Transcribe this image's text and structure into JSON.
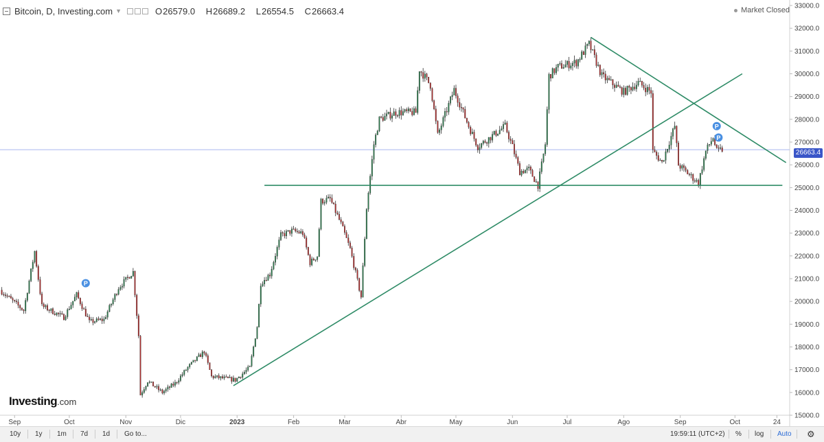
{
  "header": {
    "symbol": "Bitcoin, D, Investing.com",
    "open_label": "O",
    "open": "26579.0",
    "high_label": "H",
    "high": "26689.2",
    "low_label": "L",
    "low": "26554.5",
    "close_label": "C",
    "close": "26663.4"
  },
  "status": "Market Closed",
  "logo": {
    "main": "Investing",
    "suffix": ".com"
  },
  "toolbar": {
    "periods": [
      "10y",
      "1y",
      "1m",
      "7d",
      "1d"
    ],
    "goto": "Go to...",
    "clock": "19:59:11 (UTC+2)",
    "percent": "%",
    "log": "log",
    "auto": "Auto",
    "settings_icon": "gear-icon"
  },
  "colors": {
    "up": "#2e7d4f",
    "down": "#b03030",
    "line": "#2e8b66",
    "last_price": "#3a56c8",
    "marker": "#4a90e2"
  },
  "chart_data": {
    "type": "candlestick",
    "title": "Bitcoin, D, Investing.com",
    "ylim": [
      15000,
      33000
    ],
    "y_ticks": [
      15000,
      16000,
      17000,
      18000,
      19000,
      20000,
      21000,
      22000,
      23000,
      24000,
      25000,
      26000,
      27000,
      28000,
      29000,
      30000,
      31000,
      32000,
      33000
    ],
    "x_ticks": [
      "Sep",
      "Oct",
      "Nov",
      "Dic",
      "2023",
      "Feb",
      "Mar",
      "Abr",
      "May",
      "Jun",
      "Jul",
      "Ago",
      "Sep",
      "Oct",
      "24"
    ],
    "x_tick_dates": [
      "2022-09-01",
      "2022-10-01",
      "2022-11-01",
      "2022-12-01",
      "2023-01-01",
      "2023-02-01",
      "2023-03-01",
      "2023-04-01",
      "2023-05-01",
      "2023-06-01",
      "2023-07-01",
      "2023-08-01",
      "2023-09-01",
      "2023-10-01",
      "2023-10-24"
    ],
    "last_price": 26663.4,
    "date_range": [
      "2022-08-24",
      "2023-10-31"
    ],
    "anchors": [
      [
        "2022-08-24",
        20500
      ],
      [
        "2022-09-06",
        19600
      ],
      [
        "2022-09-12",
        22200
      ],
      [
        "2022-09-16",
        19800
      ],
      [
        "2022-09-28",
        19300
      ],
      [
        "2022-10-05",
        20300
      ],
      [
        "2022-10-12",
        19100
      ],
      [
        "2022-10-20",
        19200
      ],
      [
        "2022-10-28",
        20600
      ],
      [
        "2022-11-05",
        21300
      ],
      [
        "2022-11-08",
        18500
      ],
      [
        "2022-11-09",
        15900
      ],
      [
        "2022-11-13",
        16500
      ],
      [
        "2022-11-21",
        16000
      ],
      [
        "2022-11-28",
        16400
      ],
      [
        "2022-12-05",
        17100
      ],
      [
        "2022-12-14",
        17800
      ],
      [
        "2022-12-18",
        16700
      ],
      [
        "2022-12-31",
        16550
      ],
      [
        "2023-01-08",
        17100
      ],
      [
        "2023-01-12",
        18900
      ],
      [
        "2023-01-14",
        20800
      ],
      [
        "2023-01-19",
        21200
      ],
      [
        "2023-01-25",
        22900
      ],
      [
        "2023-01-31",
        23100
      ],
      [
        "2023-02-06",
        23000
      ],
      [
        "2023-02-10",
        21700
      ],
      [
        "2023-02-14",
        22000
      ],
      [
        "2023-02-16",
        24400
      ],
      [
        "2023-02-21",
        24500
      ],
      [
        "2023-02-27",
        23400
      ],
      [
        "2023-03-04",
        22300
      ],
      [
        "2023-03-10",
        20200
      ],
      [
        "2023-03-13",
        24100
      ],
      [
        "2023-03-17",
        26900
      ],
      [
        "2023-03-20",
        28000
      ],
      [
        "2023-03-29",
        28300
      ],
      [
        "2023-04-09",
        28300
      ],
      [
        "2023-04-11",
        30200
      ],
      [
        "2023-04-17",
        29500
      ],
      [
        "2023-04-21",
        27300
      ],
      [
        "2023-04-30",
        29300
      ],
      [
        "2023-05-08",
        27700
      ],
      [
        "2023-05-13",
        26800
      ],
      [
        "2023-05-28",
        27700
      ],
      [
        "2023-06-01",
        26800
      ],
      [
        "2023-06-05",
        25700
      ],
      [
        "2023-06-10",
        25800
      ],
      [
        "2023-06-15",
        25100
      ],
      [
        "2023-06-19",
        26900
      ],
      [
        "2023-06-21",
        29900
      ],
      [
        "2023-06-26",
        30300
      ],
      [
        "2023-07-06",
        30500
      ],
      [
        "2023-07-13",
        31300
      ],
      [
        "2023-07-20",
        29900
      ],
      [
        "2023-08-01",
        29200
      ],
      [
        "2023-08-09",
        29600
      ],
      [
        "2023-08-16",
        29200
      ],
      [
        "2023-08-17",
        26600
      ],
      [
        "2023-08-22",
        26100
      ],
      [
        "2023-08-29",
        27700
      ],
      [
        "2023-08-31",
        26000
      ],
      [
        "2023-09-11",
        25200
      ],
      [
        "2023-09-15",
        26600
      ],
      [
        "2023-09-19",
        27200
      ],
      [
        "2023-09-21",
        26600
      ],
      [
        "2023-09-24",
        26663
      ]
    ],
    "horizontal_line": {
      "y": 25100,
      "from": "2023-01-16",
      "to": "2023-10-27"
    },
    "trendlines": [
      {
        "from": [
          "2022-12-30",
          16300
        ],
        "to": [
          "2023-10-05",
          30000
        ]
      },
      {
        "from": [
          "2023-07-14",
          31600
        ],
        "to": [
          "2023-10-29",
          26100
        ]
      }
    ],
    "markers": [
      {
        "date": "2022-10-10",
        "y": 20800,
        "label": "P"
      },
      {
        "date": "2023-09-21",
        "y": 27700,
        "label": "P"
      },
      {
        "date": "2023-09-22",
        "y": 27200,
        "label": "P"
      }
    ]
  }
}
